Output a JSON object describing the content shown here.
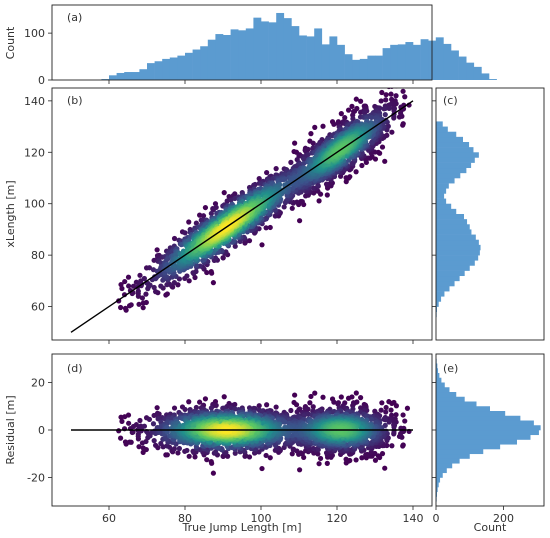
{
  "chart_data": [
    {
      "panel": "(a)",
      "type": "bar",
      "ylabel": "Count",
      "xlim": [
        45,
        145
      ],
      "ylim": [
        0,
        160
      ],
      "yticks": [
        0,
        100
      ],
      "bin_width": 2,
      "bin_start": 58,
      "values": [
        2,
        10,
        15,
        17,
        17,
        23,
        36,
        40,
        45,
        48,
        52,
        58,
        65,
        72,
        86,
        98,
        96,
        108,
        106,
        110,
        133,
        125,
        123,
        143,
        132,
        115,
        95,
        93,
        110,
        76,
        93,
        75,
        55,
        43,
        45,
        52,
        52,
        68,
        75,
        76,
        81,
        75,
        87,
        84,
        91,
        77,
        63,
        50,
        37,
        28,
        14,
        2
      ],
      "color": "#5b9bd0"
    },
    {
      "panel": "(b)",
      "type": "scatter",
      "ylabel": "xLength [m]",
      "xlim": [
        45,
        145
      ],
      "ylim": [
        47,
        145
      ],
      "yticks": [
        60,
        80,
        100,
        120,
        140
      ],
      "fit_line": {
        "x": [
          50,
          140
        ],
        "y": [
          50,
          140
        ]
      },
      "cluster_centers": [
        [
          91,
          90
        ],
        [
          121,
          119
        ]
      ],
      "colormap": [
        "#440154",
        "#3b528b",
        "#21918c",
        "#5ec962",
        "#fde725"
      ]
    },
    {
      "panel": "(c)",
      "type": "bar",
      "orientation": "horizontal",
      "ylim": [
        47,
        145
      ],
      "xlim": [
        0,
        320
      ],
      "bin_start": 56,
      "bin_width": 2,
      "values": [
        2,
        3,
        8,
        15,
        25,
        40,
        55,
        70,
        85,
        100,
        115,
        125,
        130,
        132,
        127,
        118,
        105,
        100,
        92,
        83,
        60,
        45,
        30,
        24,
        30,
        38,
        55,
        72,
        90,
        104,
        115,
        127,
        111,
        98,
        80,
        60,
        35,
        20
      ],
      "color": "#5b9bd0"
    },
    {
      "panel": "(d)",
      "type": "scatter",
      "xlabel": "True Jump Length [m]",
      "ylabel": "Residual [m]",
      "xlim": [
        45,
        145
      ],
      "ylim": [
        -32,
        32
      ],
      "xticks": [
        60,
        80,
        100,
        120,
        140
      ],
      "yticks": [
        -20,
        0,
        20
      ],
      "zero_line": {
        "x": [
          50,
          140
        ],
        "y": [
          0,
          0
        ]
      },
      "colormap": [
        "#440154",
        "#3b528b",
        "#21918c",
        "#5ec962",
        "#fde725"
      ]
    },
    {
      "panel": "(e)",
      "type": "bar",
      "orientation": "horizontal",
      "xlabel": "Count",
      "xlim": [
        0,
        320
      ],
      "ylim": [
        -32,
        32
      ],
      "xticks": [
        0,
        200
      ],
      "bin_start": -30,
      "bin_width": 2,
      "values": [
        2,
        3,
        5,
        8,
        12,
        20,
        32,
        48,
        70,
        100,
        140,
        190,
        240,
        280,
        305,
        310,
        290,
        250,
        205,
        160,
        120,
        85,
        60,
        40,
        26,
        16,
        10,
        6,
        4,
        2
      ],
      "color": "#5b9bd0"
    }
  ],
  "labels": {
    "a": "(a)",
    "b": "(b)",
    "c": "(c)",
    "d": "(d)",
    "e": "(e)",
    "count_a": "Count",
    "xlength": "xLength [m]",
    "residual": "Residual [m]",
    "true_jump": "True Jump Length [m]",
    "count_e": "Count"
  }
}
